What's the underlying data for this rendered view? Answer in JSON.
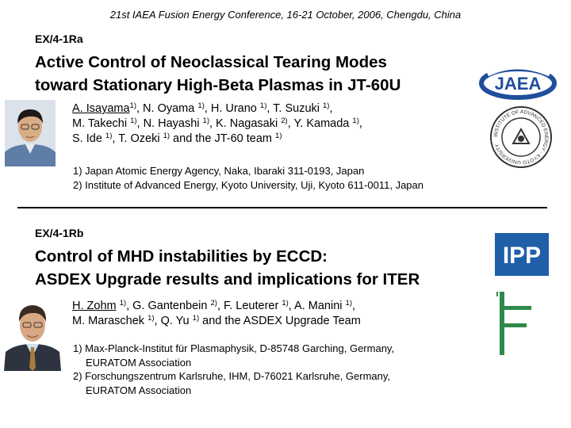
{
  "conference": "21st IAEA Fusion Energy Conference, 16-21 October, 2006, Chengdu, China",
  "talk1": {
    "code": "EX/4-1Ra",
    "title_line1": "Active Control of Neoclassical Tearing Modes",
    "title_line2": "toward Stationary High-Beta Plasmas in JT-60U",
    "authors": [
      [
        {
          "t": "A. Isayama",
          "u": true
        },
        {
          "s": "1)"
        },
        {
          "t": ", N. Oyama "
        },
        {
          "s": "1)"
        },
        {
          "t": ", H. Urano "
        },
        {
          "s": "1)"
        },
        {
          "t": ", T. Suzuki "
        },
        {
          "s": "1)"
        },
        {
          "t": ","
        }
      ],
      [
        {
          "t": "M. Takechi "
        },
        {
          "s": "1)"
        },
        {
          "t": ", N. Hayashi "
        },
        {
          "s": "1)"
        },
        {
          "t": ", K. Nagasaki "
        },
        {
          "s": "2)"
        },
        {
          "t": ", Y. Kamada "
        },
        {
          "s": "1)"
        },
        {
          "t": ","
        }
      ],
      [
        {
          "t": "S. Ide "
        },
        {
          "s": "1)"
        },
        {
          "t": ", T. Ozeki "
        },
        {
          "s": "1)"
        },
        {
          "t": " and the JT-60 team "
        },
        {
          "s": "1)"
        }
      ]
    ],
    "aff1": "1) Japan Atomic Energy Agency, Naka, Ibaraki 311-0193, Japan",
    "aff2": "2) Institute of Advanced Energy, Kyoto University, Uji, Kyoto 611-0011, Japan",
    "logo_text": "JAEA",
    "seal_text": "INSTITUTE OF ADVANCED ENERGY · KYOTO UNIVERSITY"
  },
  "talk2": {
    "code": "EX/4-1Rb",
    "title_line1": "Control of MHD instabilities by ECCD:",
    "title_line2": "ASDEX Upgrade results and implications for ITER",
    "authors": [
      [
        {
          "t": "H. Zohm",
          "u": true
        },
        {
          "t": " "
        },
        {
          "s": "1)"
        },
        {
          "t": ", G. Gantenbein "
        },
        {
          "s": "2)"
        },
        {
          "t": ", F. Leuterer "
        },
        {
          "s": "1)"
        },
        {
          "t": ", A. Manini "
        },
        {
          "s": "1)"
        },
        {
          "t": ","
        }
      ],
      [
        {
          "t": "M. Maraschek "
        },
        {
          "s": "1)"
        },
        {
          "t": ", Q. Yu "
        },
        {
          "s": "1)"
        },
        {
          "t": " and the ASDEX Upgrade Team"
        }
      ]
    ],
    "aff1_line1": "1) Max-Planck-Institut für Plasmaphysik, D-85748 Garching, Germany,",
    "aff1_line2": "EURATOM Association",
    "aff2_line1": "2) Forschungszentrum Karlsruhe, IHM, D-76021 Karlsruhe, Germany,",
    "aff2_line2": "EURATOM Association",
    "logo_text": "IPP"
  },
  "colors": {
    "jaea_blue": "#1f4e9c",
    "ipp_blue": "#1f5fa8",
    "fzk_green": "#2e8a4a"
  }
}
